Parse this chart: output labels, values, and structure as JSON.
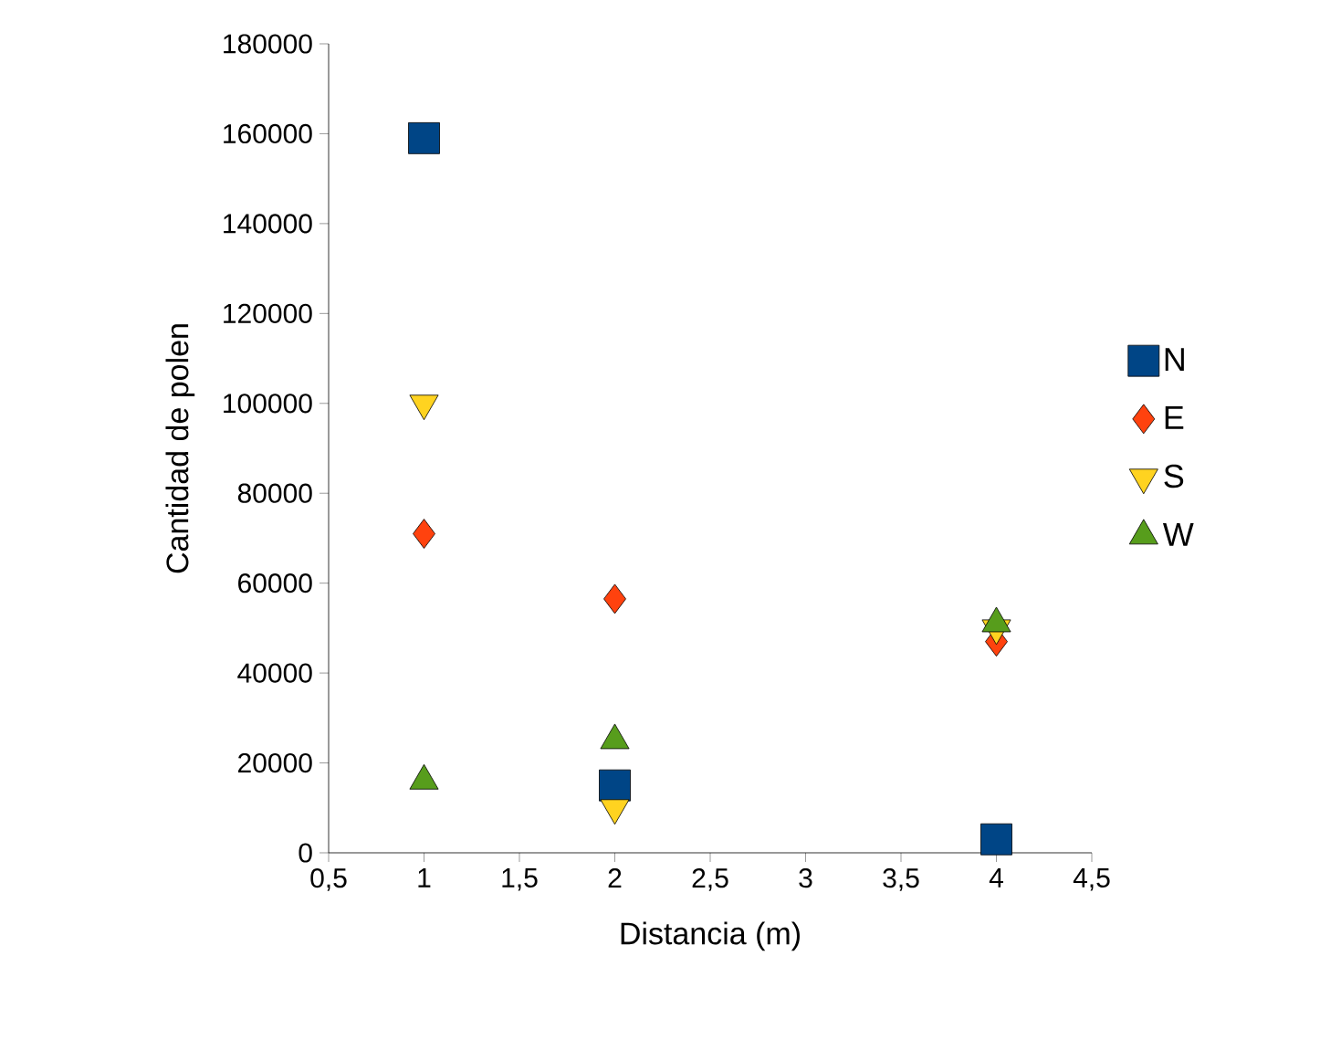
{
  "chart_data": {
    "type": "scatter",
    "xlabel": "Distancia (m)",
    "ylabel": "Cantidad de polen",
    "xlim": [
      0.5,
      4.5
    ],
    "ylim": [
      0,
      180000
    ],
    "xticks": [
      {
        "value": 0.5,
        "label": "0,5"
      },
      1,
      {
        "value": 1.5,
        "label": "1,5"
      },
      2,
      {
        "value": 2.5,
        "label": "2,5"
      },
      3,
      {
        "value": 3.5,
        "label": "3,5"
      },
      4,
      {
        "value": 4.5,
        "label": "4,5"
      }
    ],
    "yticks": [
      0,
      20000,
      40000,
      60000,
      80000,
      100000,
      120000,
      140000,
      160000,
      180000
    ],
    "grid": false,
    "legend": "right",
    "series": [
      {
        "name": "N",
        "color": "#004586",
        "marker": "square",
        "x": [
          1,
          2,
          4
        ],
        "values": [
          159000,
          15000,
          3000
        ]
      },
      {
        "name": "E",
        "color": "#ff420e",
        "marker": "diamond",
        "x": [
          1,
          2,
          4
        ],
        "values": [
          71000,
          56500,
          47000
        ]
      },
      {
        "name": "S",
        "color": "#ffd320",
        "marker": "triangle-down",
        "x": [
          1,
          2,
          4
        ],
        "values": [
          100000,
          10000,
          50000
        ]
      },
      {
        "name": "W",
        "color": "#579d1c",
        "marker": "triangle",
        "x": [
          1,
          2,
          4
        ],
        "values": [
          16000,
          25000,
          51000
        ]
      }
    ]
  }
}
